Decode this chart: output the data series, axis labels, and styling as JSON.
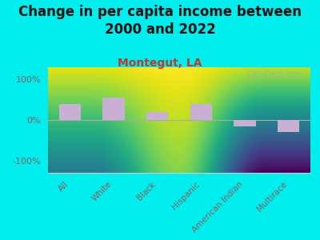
{
  "categories": [
    "All",
    "White",
    "Black",
    "Hispanic",
    "American Indian",
    "Multirace"
  ],
  "values": [
    40,
    55,
    20,
    40,
    -15,
    -30
  ],
  "bar_color": "#c9afd4",
  "title": "Change in per capita income between\n2000 and 2022",
  "subtitle": "Montegut, LA",
  "subtitle_color": "#c0392b",
  "title_color": "#111111",
  "title_fontsize": 12,
  "subtitle_fontsize": 10,
  "ylim": [
    -130,
    130
  ],
  "yticks": [
    -100,
    0,
    100
  ],
  "yticklabels": [
    "-100%",
    "0%",
    "100%"
  ],
  "background_outer": "#00EEEE",
  "background_inner_top": "#f2f5ee",
  "background_inner_bottom": "#cce8b0",
  "watermark": "City-Data.com",
  "bar_width": 0.5,
  "label_color": "#8B5E5E"
}
